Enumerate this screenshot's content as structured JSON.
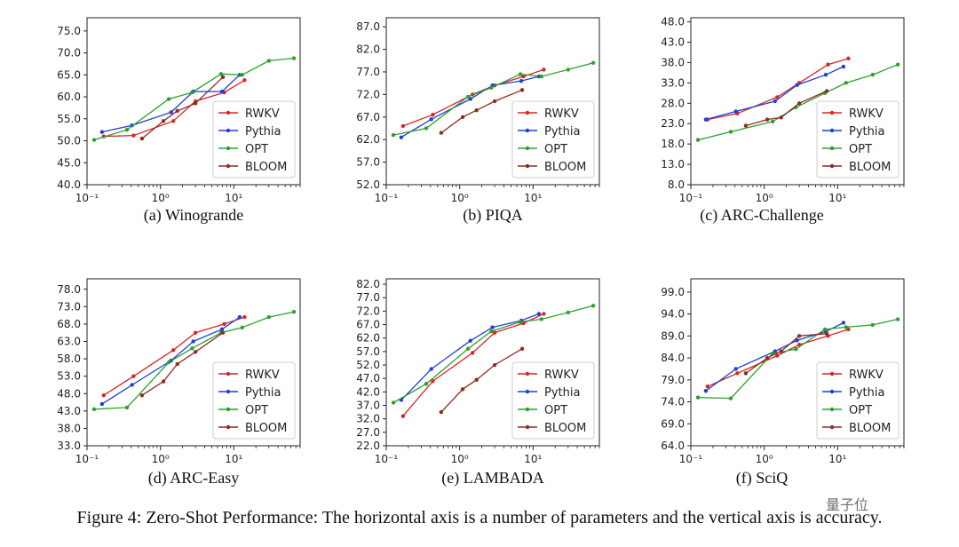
{
  "figure_caption": "Figure 4: Zero-Shot Performance: The horizontal axis is a number of parameters and the vertical axis is accuracy.",
  "watermark": "量子位",
  "colors": {
    "RWKV": "#d62728",
    "Pythia": "#1f3fd6",
    "OPT": "#2ca02c",
    "BLOOM": "#8c2d1f"
  },
  "chart_data": [
    {
      "type": "line",
      "caption": "(a) Winogrande",
      "xscale": "log",
      "xlim": [
        0.1,
        80
      ],
      "xticks": [
        {
          "v": 0.1,
          "label": "10⁻¹"
        },
        {
          "v": 1,
          "label": "10⁰"
        },
        {
          "v": 10,
          "label": "10¹"
        }
      ],
      "ylim": [
        40,
        78
      ],
      "yticks": [
        "40.0",
        "45.0",
        "50.0",
        "55.0",
        "60.0",
        "65.0",
        "70.0",
        "75.0"
      ],
      "series": [
        {
          "name": "RWKV",
          "x": [
            0.169,
            0.43,
            1.5,
            3,
            7.4,
            14
          ],
          "y": [
            51.0,
            51.2,
            54.5,
            59.0,
            61.0,
            63.8
          ]
        },
        {
          "name": "Pythia",
          "x": [
            0.16,
            0.41,
            1.4,
            2.8,
            6.9,
            12
          ],
          "y": [
            52.0,
            53.5,
            56.5,
            61.2,
            61.2,
            65.0
          ]
        },
        {
          "name": "OPT",
          "x": [
            0.125,
            0.35,
            1.3,
            2.7,
            6.7,
            13,
            30,
            66
          ],
          "y": [
            50.2,
            52.5,
            59.5,
            61.0,
            65.2,
            65.0,
            68.2,
            68.8
          ]
        },
        {
          "name": "BLOOM",
          "x": [
            0.56,
            1.1,
            1.7,
            3,
            7.1
          ],
          "y": [
            50.5,
            54.5,
            56.8,
            58.5,
            64.5
          ]
        }
      ]
    },
    {
      "type": "line",
      "caption": "(b) PIQA",
      "xscale": "log",
      "xlim": [
        0.1,
        80
      ],
      "xticks": [
        {
          "v": 0.1,
          "label": "10⁻¹"
        },
        {
          "v": 1,
          "label": "10⁰"
        },
        {
          "v": 10,
          "label": "10¹"
        }
      ],
      "ylim": [
        52,
        89
      ],
      "yticks": [
        "52.0",
        "57.0",
        "62.0",
        "67.0",
        "72.0",
        "77.0",
        "82.0",
        "87.0"
      ],
      "series": [
        {
          "name": "RWKV",
          "x": [
            0.169,
            0.43,
            1.5,
            3,
            7.4,
            14
          ],
          "y": [
            65.0,
            67.5,
            72.0,
            74.0,
            76.0,
            77.5
          ]
        },
        {
          "name": "Pythia",
          "x": [
            0.16,
            0.41,
            1.4,
            2.8,
            6.9,
            12
          ],
          "y": [
            62.5,
            66.5,
            71.0,
            74.0,
            75.0,
            76.0
          ]
        },
        {
          "name": "OPT",
          "x": [
            0.125,
            0.35,
            1.3,
            2.7,
            6.7,
            13,
            30,
            66
          ],
          "y": [
            63.0,
            64.5,
            71.5,
            73.5,
            76.5,
            76.0,
            77.5,
            79.0
          ]
        },
        {
          "name": "BLOOM",
          "x": [
            0.56,
            1.1,
            1.7,
            3,
            7.1
          ],
          "y": [
            63.5,
            67.0,
            68.5,
            70.5,
            73.0
          ]
        }
      ]
    },
    {
      "type": "line",
      "caption": "(c) ARC-Challenge",
      "xscale": "log",
      "xlim": [
        0.1,
        80
      ],
      "xticks": [
        {
          "v": 0.1,
          "label": "10⁻¹"
        },
        {
          "v": 1,
          "label": "10⁰"
        },
        {
          "v": 10,
          "label": "10¹"
        }
      ],
      "ylim": [
        8,
        49
      ],
      "yticks": [
        "8.0",
        "13.0",
        "18.0",
        "23.0",
        "28.0",
        "33.0",
        "38.0",
        "43.0",
        "48.0"
      ],
      "series": [
        {
          "name": "RWKV",
          "x": [
            0.169,
            0.43,
            1.5,
            3,
            7.4,
            14
          ],
          "y": [
            24.0,
            25.5,
            29.5,
            33.0,
            37.5,
            39.0
          ]
        },
        {
          "name": "Pythia",
          "x": [
            0.16,
            0.41,
            1.4,
            2.8,
            6.9,
            12
          ],
          "y": [
            24.0,
            26.0,
            28.5,
            32.5,
            35.0,
            37.0
          ]
        },
        {
          "name": "OPT",
          "x": [
            0.125,
            0.35,
            1.3,
            2.7,
            6.7,
            13,
            30,
            66
          ],
          "y": [
            19.0,
            21.0,
            23.5,
            27.0,
            30.5,
            33.0,
            35.0,
            37.5
          ]
        },
        {
          "name": "BLOOM",
          "x": [
            0.56,
            1.1,
            1.7,
            3,
            7.1
          ],
          "y": [
            22.5,
            24.0,
            24.5,
            28.0,
            31.0
          ]
        }
      ]
    },
    {
      "type": "line",
      "caption": "(d) ARC-Easy",
      "xscale": "log",
      "xlim": [
        0.1,
        80
      ],
      "xticks": [
        {
          "v": 0.1,
          "label": "10⁻¹"
        },
        {
          "v": 1,
          "label": "10⁰"
        },
        {
          "v": 10,
          "label": "10¹"
        }
      ],
      "ylim": [
        33,
        81
      ],
      "yticks": [
        "33.0",
        "38.0",
        "43.0",
        "48.0",
        "53.0",
        "58.0",
        "63.0",
        "68.0",
        "73.0",
        "78.0"
      ],
      "series": [
        {
          "name": "RWKV",
          "x": [
            0.169,
            0.43,
            1.5,
            3,
            7.4,
            14
          ],
          "y": [
            47.5,
            53.0,
            60.5,
            65.5,
            68.0,
            70.0
          ]
        },
        {
          "name": "Pythia",
          "x": [
            0.16,
            0.41,
            1.4,
            2.8,
            6.9,
            12
          ],
          "y": [
            45.0,
            50.5,
            57.5,
            63.0,
            66.5,
            70.0
          ]
        },
        {
          "name": "OPT",
          "x": [
            0.125,
            0.35,
            1.3,
            2.7,
            6.7,
            13,
            30,
            66
          ],
          "y": [
            43.5,
            44.0,
            57.0,
            61.0,
            65.5,
            67.0,
            70.0,
            71.5
          ]
        },
        {
          "name": "BLOOM",
          "x": [
            0.56,
            1.1,
            1.7,
            3,
            7.1
          ],
          "y": [
            47.5,
            51.5,
            56.5,
            60.0,
            65.5
          ]
        }
      ]
    },
    {
      "type": "line",
      "caption": "(e) LAMBADA",
      "xscale": "log",
      "xlim": [
        0.1,
        80
      ],
      "xticks": [
        {
          "v": 0.1,
          "label": "10⁻¹"
        },
        {
          "v": 1,
          "label": "10⁰"
        },
        {
          "v": 10,
          "label": "10¹"
        }
      ],
      "ylim": [
        22,
        84
      ],
      "yticks": [
        "22.0",
        "27.0",
        "32.0",
        "37.0",
        "42.0",
        "47.0",
        "52.0",
        "57.0",
        "62.0",
        "67.0",
        "72.0",
        "77.0",
        "82.0"
      ],
      "series": [
        {
          "name": "RWKV",
          "x": [
            0.169,
            0.43,
            1.5,
            3,
            7.4,
            14
          ],
          "y": [
            33.0,
            46.0,
            56.5,
            64.0,
            67.5,
            71.0
          ]
        },
        {
          "name": "Pythia",
          "x": [
            0.16,
            0.41,
            1.4,
            2.8,
            6.9,
            12
          ],
          "y": [
            39.0,
            50.5,
            61.0,
            66.0,
            68.5,
            71.0
          ]
        },
        {
          "name": "OPT",
          "x": [
            0.125,
            0.35,
            1.3,
            2.7,
            6.7,
            13,
            30,
            66
          ],
          "y": [
            38.0,
            45.0,
            58.0,
            64.5,
            68.0,
            69.0,
            71.5,
            74.0
          ]
        },
        {
          "name": "BLOOM",
          "x": [
            0.56,
            1.1,
            1.7,
            3,
            7.1
          ],
          "y": [
            34.5,
            43.0,
            46.5,
            52.0,
            58.0
          ]
        }
      ]
    },
    {
      "type": "line",
      "caption": "(f) SciQ",
      "xscale": "log",
      "xlim": [
        0.1,
        80
      ],
      "xticks": [
        {
          "v": 0.1,
          "label": "10⁻¹"
        },
        {
          "v": 1,
          "label": "10⁰"
        },
        {
          "v": 10,
          "label": "10¹"
        }
      ],
      "ylim": [
        64,
        102
      ],
      "yticks": [
        "64.0",
        "69.0",
        "74.0",
        "79.0",
        "84.0",
        "89.0",
        "94.0",
        "99.0"
      ],
      "series": [
        {
          "name": "RWKV",
          "x": [
            0.169,
            0.43,
            1.5,
            3,
            7.4,
            14
          ],
          "y": [
            77.5,
            80.5,
            84.5,
            87.0,
            89.0,
            90.5
          ]
        },
        {
          "name": "Pythia",
          "x": [
            0.16,
            0.41,
            1.4,
            2.8,
            6.9,
            12
          ],
          "y": [
            76.5,
            81.5,
            85.5,
            88.0,
            90.0,
            92.0
          ]
        },
        {
          "name": "OPT",
          "x": [
            0.125,
            0.35,
            1.3,
            2.7,
            6.7,
            13,
            30,
            66
          ],
          "y": [
            75.0,
            74.8,
            85.0,
            86.0,
            90.5,
            91.0,
            91.5,
            92.8
          ]
        },
        {
          "name": "BLOOM",
          "x": [
            0.56,
            1.1,
            1.7,
            3,
            7.1
          ],
          "y": [
            80.5,
            84.0,
            85.5,
            89.0,
            89.5
          ]
        }
      ]
    }
  ]
}
